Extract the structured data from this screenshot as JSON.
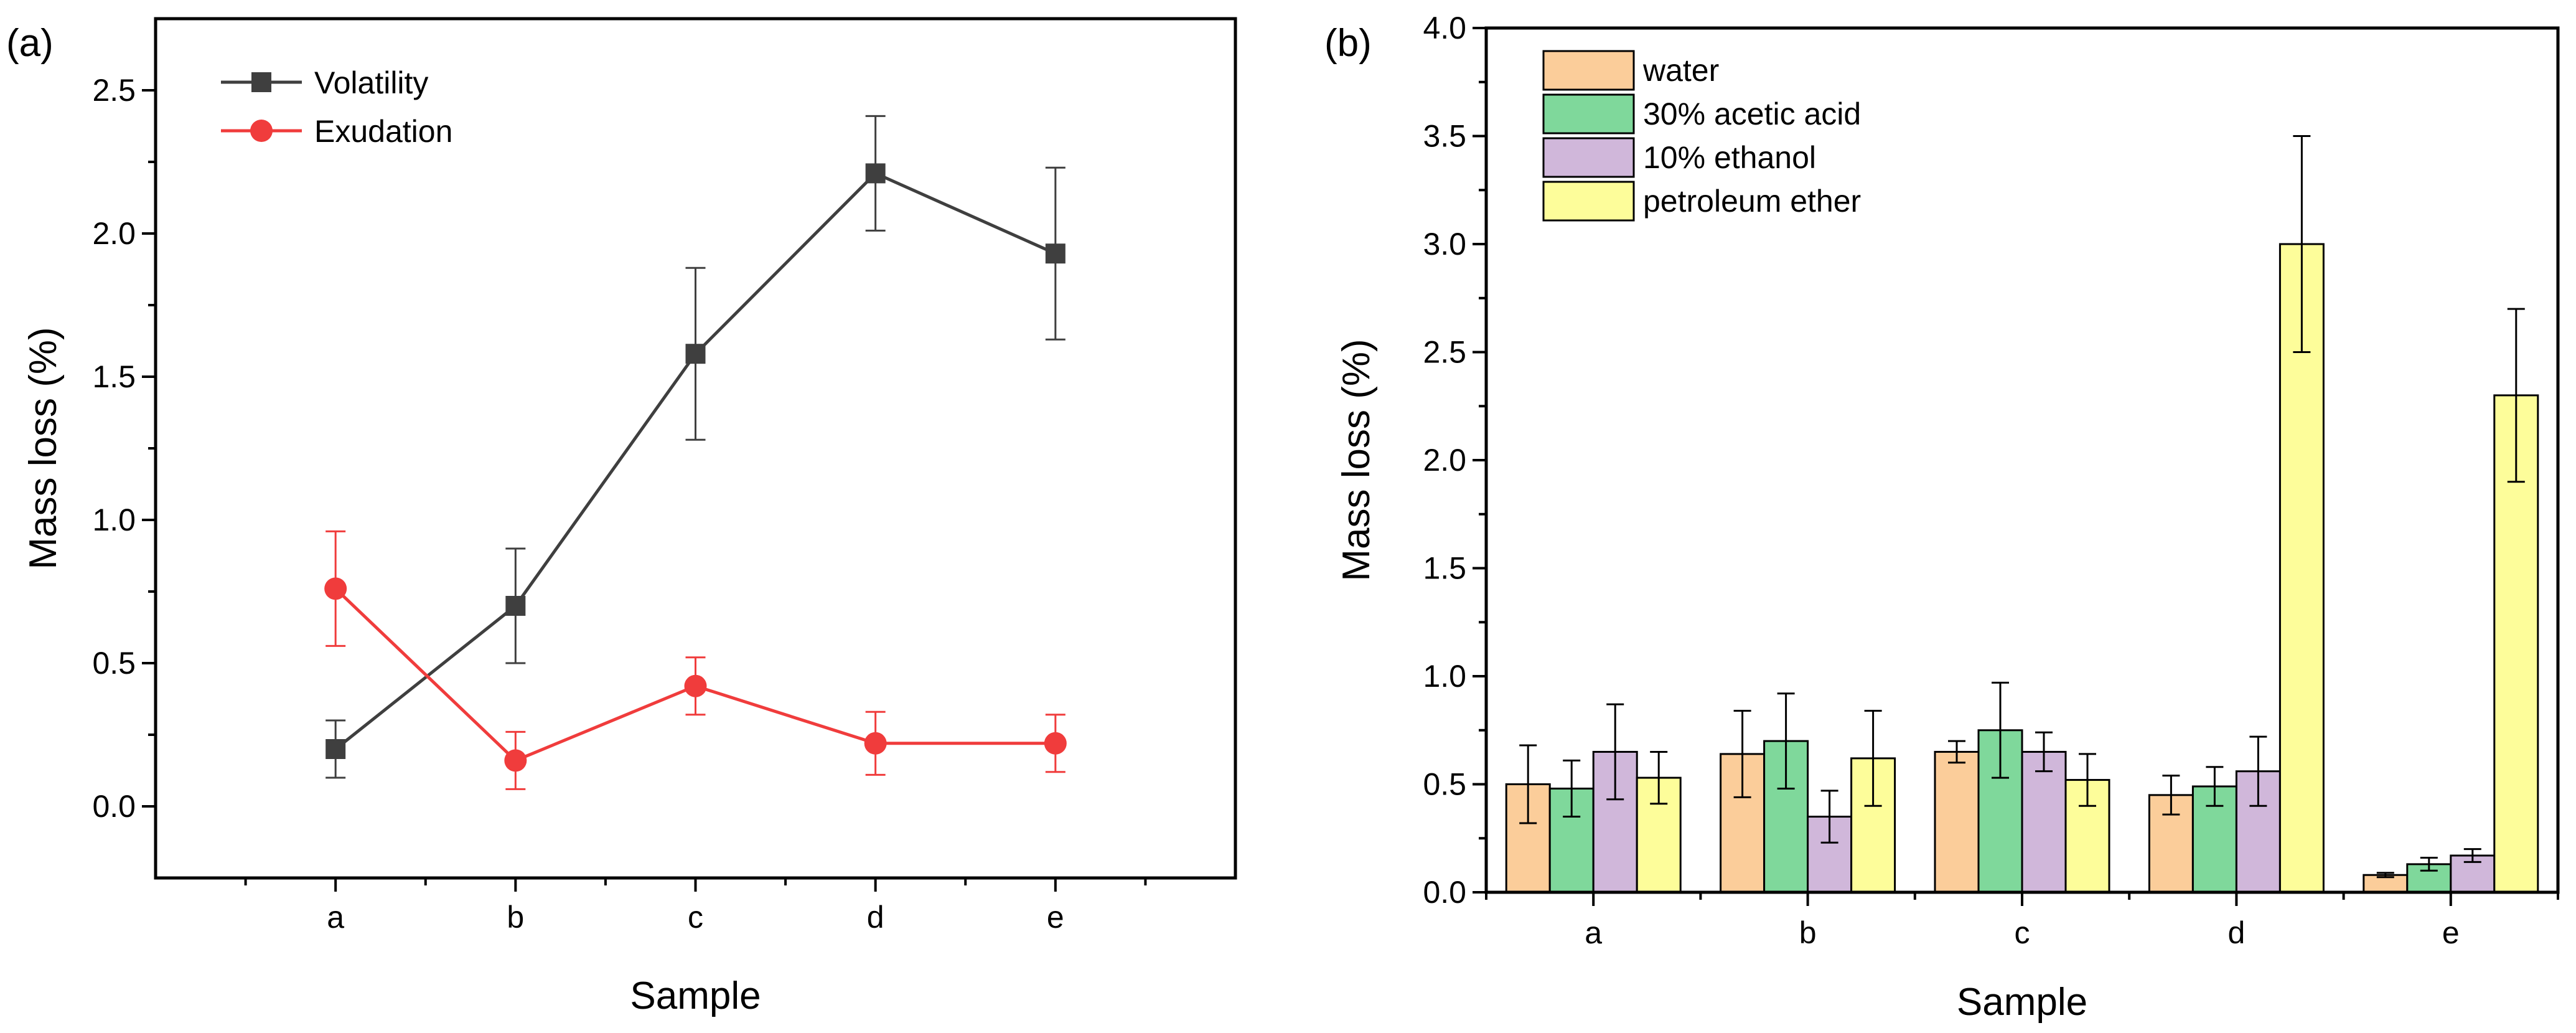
{
  "colors": {
    "volatility": "#3f3f3f",
    "exudation": "#f03c3c",
    "water": "#fbcd9a",
    "acetic": "#7fd89b",
    "ethanol": "#d0b7da",
    "petroleum": "#fdfd9a"
  },
  "chart_data": [
    {
      "panel": "(a)",
      "type": "line",
      "xlabel": "Sample",
      "ylabel": "Mass loss (%)",
      "categories": [
        "a",
        "b",
        "c",
        "d",
        "e"
      ],
      "ylim": [
        -0.25,
        2.75
      ],
      "yticks": [
        "0.0",
        "0.5",
        "1.0",
        "1.5",
        "2.0",
        "2.5"
      ],
      "legend_position": "top-left",
      "series": [
        {
          "name": "Volatility",
          "marker": "square",
          "values": [
            0.2,
            0.7,
            1.58,
            2.21,
            1.93
          ],
          "errors": [
            0.1,
            0.2,
            0.3,
            0.2,
            0.3
          ]
        },
        {
          "name": "Exudation",
          "marker": "circle",
          "values": [
            0.76,
            0.16,
            0.42,
            0.22,
            0.22
          ],
          "errors": [
            0.2,
            0.1,
            0.1,
            0.11,
            0.1
          ]
        }
      ]
    },
    {
      "panel": "(b)",
      "type": "bar",
      "xlabel": "Sample",
      "ylabel": "Mass loss (%)",
      "categories": [
        "a",
        "b",
        "c",
        "d",
        "e"
      ],
      "ylim": [
        0,
        4.0
      ],
      "yticks": [
        "0.0",
        "0.5",
        "1.0",
        "1.5",
        "2.0",
        "2.5",
        "3.0",
        "3.5",
        "4.0"
      ],
      "legend_position": "top-left",
      "series": [
        {
          "name": "water",
          "values": [
            0.5,
            0.64,
            0.65,
            0.45,
            0.08
          ],
          "errors": [
            0.18,
            0.2,
            0.05,
            0.09,
            0.01
          ]
        },
        {
          "name": "30% acetic acid",
          "values": [
            0.48,
            0.7,
            0.75,
            0.49,
            0.13
          ],
          "errors": [
            0.13,
            0.22,
            0.22,
            0.09,
            0.03
          ]
        },
        {
          "name": "10% ethanol",
          "values": [
            0.65,
            0.35,
            0.65,
            0.56,
            0.17
          ],
          "errors": [
            0.22,
            0.12,
            0.09,
            0.16,
            0.03
          ]
        },
        {
          "name": "petroleum ether",
          "values": [
            0.53,
            0.62,
            0.52,
            3.0,
            2.3
          ],
          "errors": [
            0.12,
            0.22,
            0.12,
            0.5,
            0.4
          ]
        }
      ]
    }
  ]
}
